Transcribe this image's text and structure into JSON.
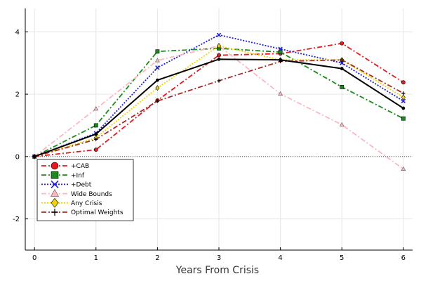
{
  "chart_data": {
    "type": "line",
    "title": "",
    "xlabel": "Years From Crisis",
    "ylabel": "",
    "x": [
      0,
      1,
      2,
      3,
      4,
      5,
      6
    ],
    "xlim": [
      -0.15,
      6.15
    ],
    "ylim": [
      -3,
      4.75
    ],
    "x_ticks": [
      "0",
      "1",
      "2",
      "3",
      "4",
      "5",
      "6"
    ],
    "y_ticks": [
      "-2",
      "0",
      "2",
      "4"
    ],
    "y_tick_values": [
      -2,
      0,
      2,
      4
    ],
    "grid": true,
    "zero_line": "dotted",
    "legend_position": "bottom-left",
    "series": [
      {
        "name": "+CAB",
        "color": "#e41a1c",
        "dash": "dashdot",
        "marker": "circle",
        "values": [
          0,
          0.22,
          1.8,
          3.25,
          3.3,
          3.63,
          2.38
        ]
      },
      {
        "name": "+Inf",
        "color": "#1a8a1a",
        "dash": "dashdot",
        "marker": "square",
        "values": [
          0,
          1.0,
          3.37,
          3.47,
          3.35,
          2.23,
          1.22
        ]
      },
      {
        "name": "+Debt",
        "color": "#1f1fd6",
        "dash": "dotted",
        "marker": "x",
        "values": [
          0,
          0.75,
          2.85,
          3.9,
          3.45,
          3.0,
          1.78
        ]
      },
      {
        "name": "Wide Bounds",
        "color": "#ffb6c1",
        "dash": "dashdot",
        "marker": "triangle",
        "values": [
          0,
          1.53,
          3.08,
          3.55,
          2.01,
          1.02,
          -0.4
        ]
      },
      {
        "name": "Any Crisis",
        "color": "#f2d400",
        "dash": "dotted",
        "marker": "diamond",
        "values": [
          0,
          0.6,
          2.2,
          3.55,
          3.1,
          3.1,
          1.9
        ]
      },
      {
        "name": "Optimal Weights",
        "color": "#a52a2a",
        "dash": "dashdot",
        "marker": "plus",
        "values": [
          0,
          0.55,
          1.78,
          2.43,
          3.05,
          3.1,
          2.03
        ]
      },
      {
        "name": "",
        "color": "#000000",
        "dash": "solid",
        "marker": "dot",
        "values": [
          0,
          0.72,
          2.45,
          3.12,
          3.1,
          2.82,
          1.55
        ]
      }
    ]
  }
}
